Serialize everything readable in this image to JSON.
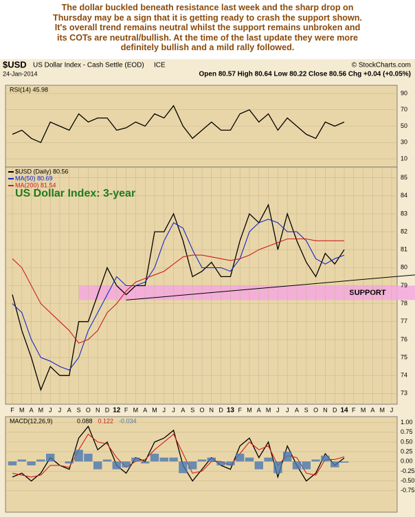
{
  "commentary": [
    "The dollar buckled beneath resistance last week and the sharp drop on",
    "Thursday may be a sign that it is getting ready to crash the support shown.",
    "It's overall trend remains neutral whilst the support remains unbroken and",
    "its COTs are neutral/bullish. At the time of the last update they were more",
    "definitely bullish and a mild rally followed."
  ],
  "header": {
    "symbol": "$USD",
    "name": "US Dollar Index - Cash Settle (EOD)",
    "exchange": "ICE",
    "source": "© StockCharts.com",
    "date": "24-Jan-2014",
    "quote": "Open 80.57  High 80.64  Low 80.22  Close 80.56  Chg +0.04 (+0.05%)"
  },
  "chart_data": [
    {
      "type": "line",
      "label": "RSI(14) 45.98",
      "ylim": [
        0,
        100
      ],
      "yticks": [
        10,
        30,
        50,
        70,
        90
      ],
      "grid": true,
      "series": [
        {
          "name": "RSI(14)",
          "color": "#000000",
          "values": [
            40,
            45,
            35,
            30,
            55,
            50,
            45,
            65,
            55,
            60,
            60,
            45,
            48,
            55,
            50,
            65,
            60,
            75,
            50,
            35,
            45,
            55,
            45,
            45,
            65,
            70,
            55,
            65,
            45,
            60,
            50,
            40,
            35,
            55,
            50,
            55,
            null,
            null,
            null,
            null,
            null
          ]
        }
      ]
    },
    {
      "type": "line",
      "title": "US Dollar Index: 3-year",
      "ylim": [
        72.4,
        85.6
      ],
      "yticks": [
        73,
        74,
        75,
        76,
        77,
        78,
        79,
        80,
        81,
        82,
        83,
        84,
        85
      ],
      "grid": true,
      "categories": [
        "F",
        "M",
        "A",
        "M",
        "J",
        "J",
        "A",
        "S",
        "O",
        "N",
        "D",
        "12",
        "F",
        "M",
        "A",
        "M",
        "J",
        "J",
        "A",
        "S",
        "O",
        "N",
        "D",
        "13",
        "F",
        "M",
        "A",
        "M",
        "J",
        "J",
        "A",
        "S",
        "O",
        "N",
        "D",
        "14",
        "F",
        "M",
        "A",
        "M",
        "J"
      ],
      "series": [
        {
          "name": "$USD (Daily) 80.56",
          "color": "#000000",
          "values": [
            78.5,
            76.5,
            75,
            73.2,
            74.5,
            74,
            74,
            77,
            77,
            78.5,
            80,
            79,
            78.5,
            79,
            79,
            82,
            82,
            83,
            81.5,
            79.5,
            79.8,
            80.3,
            79.5,
            79.5,
            81.5,
            83,
            82.5,
            83.5,
            81,
            83,
            81.5,
            80.3,
            79.5,
            80.8,
            80.2,
            81,
            null,
            null,
            null,
            null,
            null
          ]
        },
        {
          "name": "MA(50) 80.69",
          "color": "#1428c8",
          "values": [
            78,
            77.5,
            76,
            75,
            74.8,
            74.5,
            74.3,
            75,
            76.5,
            77.5,
            78.5,
            79.5,
            79,
            79,
            79.2,
            80,
            81.5,
            82.5,
            82.2,
            81,
            80,
            80,
            80,
            79.8,
            80.5,
            82,
            82.5,
            82.7,
            82.5,
            82,
            82,
            81.5,
            80.5,
            80.2,
            80.5,
            80.7,
            null,
            null,
            null,
            null,
            null
          ]
        },
        {
          "name": "MA(200) 81.54",
          "color": "#c81e1e",
          "values": [
            80.5,
            80,
            79,
            78,
            77.5,
            77,
            76.5,
            75.8,
            76,
            76.5,
            77.5,
            78,
            78.7,
            79.2,
            79.4,
            79.6,
            79.8,
            80.2,
            80.6,
            80.7,
            80.7,
            80.6,
            80.5,
            80.4,
            80.5,
            80.7,
            81,
            81.2,
            81.4,
            81.6,
            81.6,
            81.6,
            81.5,
            81.5,
            81.5,
            81.5,
            null,
            null,
            null,
            null,
            null
          ]
        }
      ],
      "support": {
        "label": "SUPPORT",
        "band": [
          78.2,
          79
        ],
        "line": [
          78.2,
          79.6
        ],
        "color": "#f4a8e0"
      }
    },
    {
      "type": "line",
      "label": "MACD(12,26,9)",
      "ylim": [
        -1.3,
        1.15
      ],
      "grid": true,
      "yticks": [
        {
          "value": -0.75,
          "label": "-0.75"
        },
        {
          "value": -0.5,
          "label": "-0.50"
        },
        {
          "value": -0.25,
          "label": "-0.25"
        },
        {
          "value": 0,
          "label": "0.00"
        },
        {
          "value": 0.25,
          "label": "0.25"
        },
        {
          "value": 0.5,
          "label": "0.50"
        },
        {
          "value": 0.75,
          "label": "0.75"
        },
        {
          "value": 1,
          "label": "1.00"
        }
      ],
      "series": [
        {
          "name": "0.088",
          "color": "#000000",
          "values": [
            -0.4,
            -0.3,
            -0.5,
            -0.3,
            0.1,
            -0.1,
            -0.2,
            0.6,
            0.9,
            0.3,
            0.5,
            -0.1,
            -0.3,
            0.1,
            0.0,
            0.5,
            0.6,
            0.8,
            -0.1,
            -0.5,
            -0.2,
            0.1,
            -0.1,
            -0.2,
            0.4,
            0.6,
            0.1,
            0.5,
            -0.4,
            0.4,
            -0.1,
            -0.5,
            -0.3,
            0.2,
            -0.1,
            0.09,
            null,
            null,
            null,
            null,
            null
          ]
        },
        {
          "name": "0.122",
          "color": "#d01e1e",
          "values": [
            -0.3,
            -0.35,
            -0.4,
            -0.35,
            -0.1,
            -0.1,
            -0.15,
            0.3,
            0.7,
            0.5,
            0.45,
            0.1,
            -0.15,
            0.0,
            0.05,
            0.3,
            0.5,
            0.7,
            0.2,
            -0.3,
            -0.25,
            0.0,
            0.0,
            -0.1,
            0.2,
            0.5,
            0.3,
            0.4,
            -0.1,
            0.15,
            0.1,
            -0.3,
            -0.35,
            0.05,
            0.05,
            0.12,
            null,
            null,
            null,
            null,
            null
          ]
        },
        {
          "name": "-0.034",
          "color": "#4a78b0",
          "type": "histogram",
          "values": [
            -0.1,
            0.05,
            -0.1,
            0.05,
            0.2,
            0,
            -0.05,
            0.3,
            0.2,
            -0.2,
            0.05,
            -0.2,
            -0.15,
            0.1,
            -0.05,
            0.2,
            0.1,
            0.1,
            -0.3,
            -0.2,
            0.05,
            0.1,
            -0.1,
            -0.1,
            0.2,
            0.1,
            -0.2,
            0.1,
            -0.3,
            0.25,
            -0.2,
            -0.2,
            0.05,
            0.15,
            -0.15,
            -0.03,
            null,
            null,
            null,
            null,
            null
          ]
        }
      ]
    }
  ]
}
